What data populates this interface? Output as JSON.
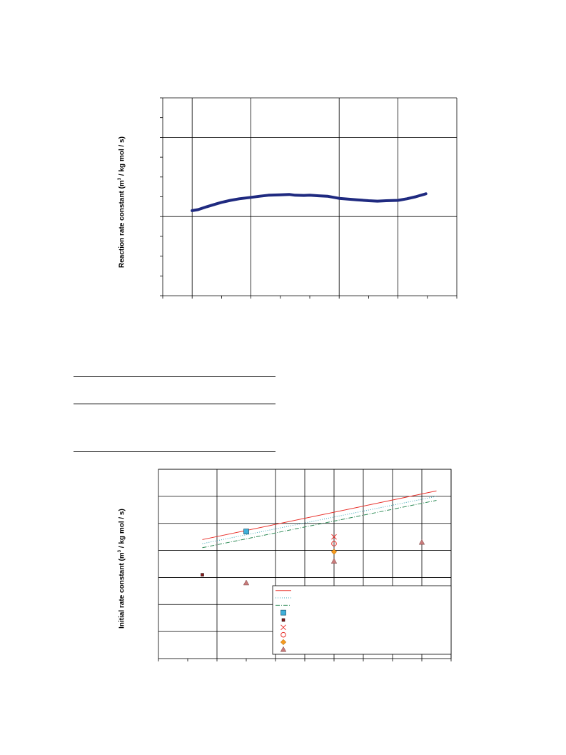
{
  "charts": [
    {
      "chart_data": {
        "type": "line",
        "ylabel_parts": [
          "Reaction rate constant (m",
          "3",
          " / kg mol / s)"
        ],
        "xlim": [
          0,
          10
        ],
        "ylim": [
          -4,
          6
        ],
        "x_minor_ticks": [
          0,
          1,
          2,
          3,
          4,
          5,
          6,
          7,
          8,
          9,
          10
        ],
        "x_major_gridlines": [
          1,
          3,
          6,
          8,
          10
        ],
        "y_minor_ticks": [
          -4,
          -3,
          -2,
          -1,
          0,
          1,
          2,
          3,
          4,
          5,
          6
        ],
        "y_major_gridlines": [
          0,
          4,
          6
        ],
        "color": "#1F2A80",
        "series": [
          {
            "x": [
              1.0,
              1.2,
              1.5,
              1.8,
              2.0,
              2.3,
              2.6,
              3.0,
              3.3,
              3.6,
              4.0,
              4.3,
              4.5,
              4.8,
              5.0,
              5.3,
              5.6,
              6.0,
              6.3,
              6.6,
              7.0,
              7.3,
              7.6,
              8.0,
              8.3,
              8.6,
              8.95
            ],
            "y": [
              0.3,
              0.35,
              0.5,
              0.63,
              0.72,
              0.82,
              0.9,
              0.97,
              1.03,
              1.08,
              1.1,
              1.12,
              1.08,
              1.07,
              1.08,
              1.05,
              1.03,
              0.92,
              0.88,
              0.85,
              0.8,
              0.78,
              0.8,
              0.82,
              0.9,
              1.0,
              1.15
            ]
          }
        ]
      }
    },
    {
      "chart_data": {
        "type": "scatter",
        "ylabel_parts": [
          "Initial rate constant (m",
          "3",
          " / kg mol / s)"
        ],
        "xlim": [
          0,
          10
        ],
        "ylim": [
          0,
          7
        ],
        "x_minor_ticks": [
          0,
          1,
          2,
          3,
          4,
          5,
          6,
          7,
          8,
          9,
          10
        ],
        "x_major_gridlines": [
          2,
          4,
          5,
          6,
          7,
          8,
          9,
          10
        ],
        "y_major_gridlines": [
          1,
          2,
          3,
          4,
          5,
          6,
          7
        ],
        "lines": [
          {
            "style": "solid",
            "color": "#E8302A",
            "x": [
              1.5,
              9.5
            ],
            "y": [
              4.4,
              6.2
            ]
          },
          {
            "style": "dotted",
            "color": "#3AA7B5",
            "x": [
              1.5,
              9.5
            ],
            "y": [
              4.25,
              6.0
            ]
          },
          {
            "style": "dashdot",
            "color": "#2E8B57",
            "x": [
              1.5,
              9.5
            ],
            "y": [
              4.1,
              5.85
            ]
          }
        ],
        "points": [
          {
            "marker": "square",
            "color": "#3FB0DA",
            "x": 3.0,
            "y": 4.7
          },
          {
            "marker": "small-square",
            "color": "#8B1A1A",
            "x": 1.5,
            "y": 3.1
          },
          {
            "marker": "x",
            "color": "#E8302A",
            "x": 6.0,
            "y": 4.5
          },
          {
            "marker": "circle",
            "color": "#E8302A",
            "x": 6.0,
            "y": 4.25
          },
          {
            "marker": "diamond",
            "color": "#F59A1E",
            "x": 6.0,
            "y": 3.95
          },
          {
            "marker": "triangle",
            "color": "#C87A7A",
            "x": 6.0,
            "y": 3.6
          },
          {
            "marker": "triangle",
            "color": "#C87A7A",
            "x": 3.0,
            "y": 2.8
          },
          {
            "marker": "triangle",
            "color": "#C87A7A",
            "x": 9.0,
            "y": 4.3
          }
        ],
        "legend": {
          "placement": "bottom-right",
          "entries": [
            {
              "kind": "line",
              "style": "solid",
              "color": "#E8302A",
              "label": ""
            },
            {
              "kind": "line",
              "style": "dotted",
              "color": "#3AA7B5",
              "label": ""
            },
            {
              "kind": "line",
              "style": "dashdot",
              "color": "#2E8B57",
              "label": ""
            },
            {
              "kind": "marker",
              "marker": "square",
              "color": "#3FB0DA",
              "label": ""
            },
            {
              "kind": "marker",
              "marker": "small-square",
              "color": "#8B1A1A",
              "label": ""
            },
            {
              "kind": "marker",
              "marker": "x",
              "color": "#E8302A",
              "label": ""
            },
            {
              "kind": "marker",
              "marker": "circle",
              "color": "#E8302A",
              "label": ""
            },
            {
              "kind": "marker",
              "marker": "diamond",
              "color": "#F59A1E",
              "label": ""
            },
            {
              "kind": "marker",
              "marker": "triangle",
              "color": "#C87A7A",
              "label": ""
            }
          ]
        }
      }
    }
  ]
}
